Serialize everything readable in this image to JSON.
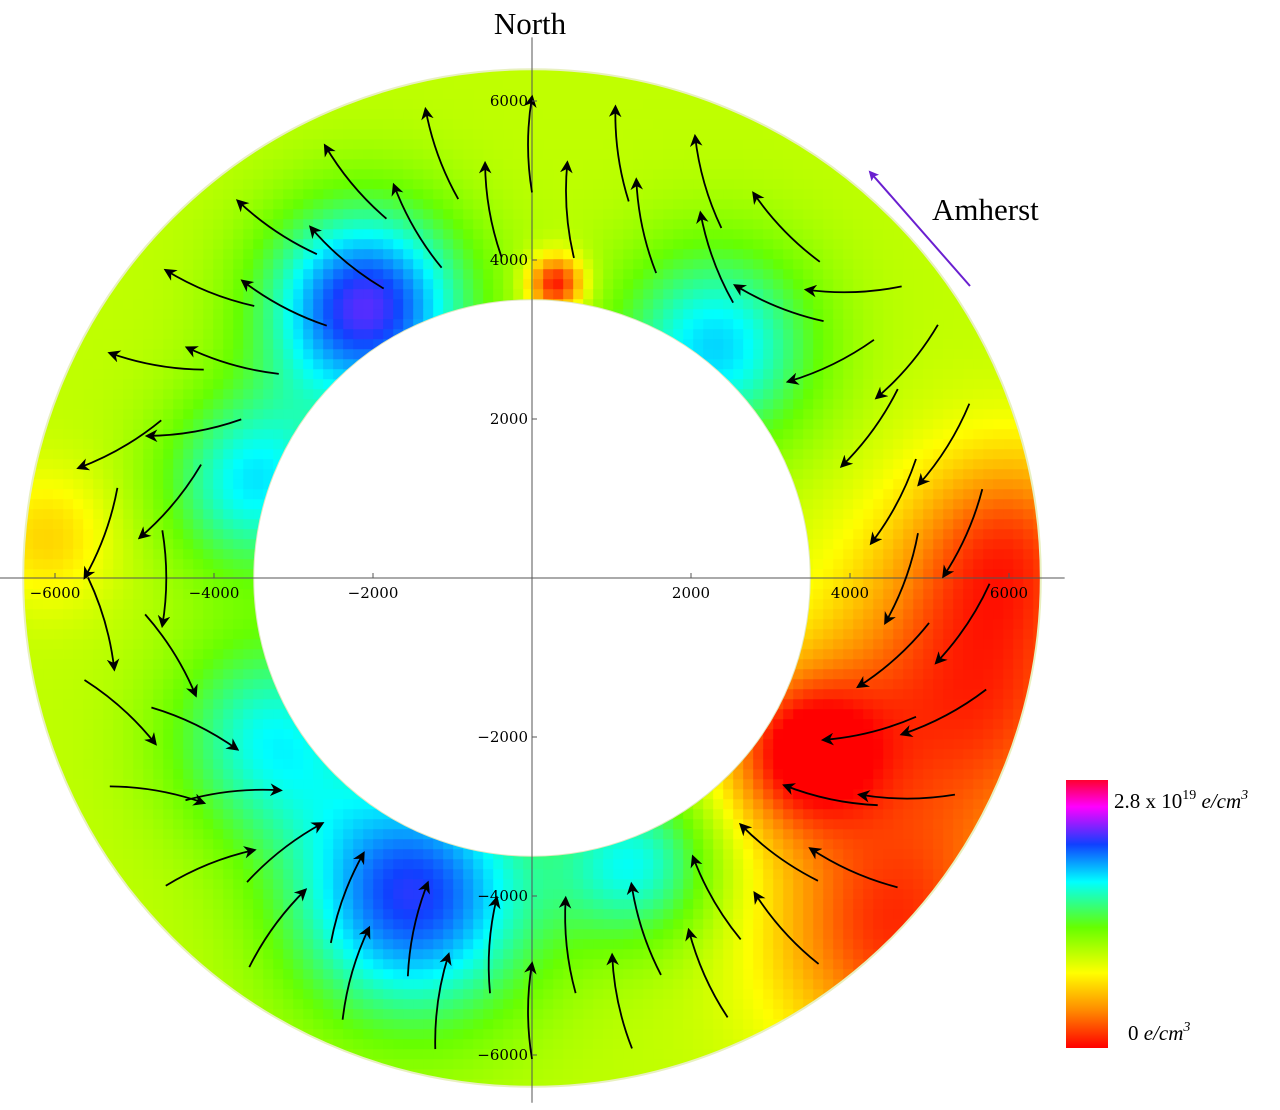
{
  "chart_data": {
    "type": "heatmap",
    "title": "",
    "xlabel": "",
    "ylabel": "",
    "xlim": [
      -6700,
      6700
    ],
    "ylim": [
      -6700,
      6700
    ],
    "annulus": {
      "inner_radius": 3500,
      "outer_radius": 6400
    },
    "x_ticks": [
      {
        "value": -6000,
        "label": "−6000"
      },
      {
        "value": -4000,
        "label": "−4000"
      },
      {
        "value": -2000,
        "label": "−2000"
      },
      {
        "value": 2000,
        "label": "2000"
      },
      {
        "value": 4000,
        "label": "4000"
      },
      {
        "value": 6000,
        "label": "6000"
      }
    ],
    "y_ticks": [
      {
        "value": 6000,
        "label": "6000"
      },
      {
        "value": 4000,
        "label": "4000"
      },
      {
        "value": 2000,
        "label": "2000"
      },
      {
        "value": -2000,
        "label": "−2000"
      },
      {
        "value": -4000,
        "label": "−4000"
      },
      {
        "value": -6000,
        "label": "−6000"
      }
    ],
    "direction_label": "North",
    "annotation": {
      "text": "Amherst",
      "arrow_color": "#6a1fd0"
    },
    "colorbar": {
      "max_label": {
        "base": "2.8 x 10",
        "exp": "19",
        "unit": " e/cm",
        "unit_exp": "3"
      },
      "min_label": {
        "base": "0",
        "unit": " e/cm",
        "unit_exp": "3"
      },
      "colors": [
        "#ff0000",
        "#ff8a00",
        "#ffff00",
        "#66ff00",
        "#00ffff",
        "#1040ff",
        "#ff00ff",
        "#ff0030"
      ]
    },
    "density_field": {
      "scale_max": 2.8e+19,
      "base_level": 0.35,
      "features": [
        {
          "x": -2100,
          "y": 3400,
          "spread": 900,
          "amplitude": 0.45
        },
        {
          "x": -3500,
          "y": 1200,
          "spread": 800,
          "amplitude": 0.28
        },
        {
          "x": 2300,
          "y": 2900,
          "spread": 900,
          "amplitude": 0.3
        },
        {
          "x": -1500,
          "y": -4000,
          "spread": 1100,
          "amplitude": 0.42
        },
        {
          "x": -3300,
          "y": -2000,
          "spread": 900,
          "amplitude": 0.25
        },
        {
          "x": 1300,
          "y": -3600,
          "spread": 700,
          "amplitude": 0.25
        },
        {
          "x": 300,
          "y": 3700,
          "spread": 250,
          "amplitude": -0.35
        },
        {
          "x": 3400,
          "y": -2200,
          "spread": 700,
          "amplitude": -0.32
        },
        {
          "x": 5500,
          "y": -1500,
          "spread": 1400,
          "amplitude": -0.3
        },
        {
          "x": 4500,
          "y": -4500,
          "spread": 1100,
          "amplitude": -0.28
        },
        {
          "x": 6000,
          "y": 500,
          "spread": 900,
          "amplitude": -0.2
        },
        {
          "x": -6100,
          "y": 500,
          "spread": 600,
          "amplitude": -0.12
        }
      ]
    },
    "flow_field": {
      "description_free": true,
      "base_angles_deg": [
        {
          "theta": 0,
          "dir": 250
        },
        {
          "theta": 30,
          "dir": 230
        },
        {
          "theta": 60,
          "dir": 110
        },
        {
          "theta": 90,
          "dir": 90
        },
        {
          "theta": 120,
          "dir": 140
        },
        {
          "theta": 150,
          "dir": 170
        },
        {
          "theta": 180,
          "dir": 270
        },
        {
          "theta": 210,
          "dir": 350
        },
        {
          "theta": 240,
          "dir": 70
        },
        {
          "theta": 270,
          "dir": 90
        },
        {
          "theta": 300,
          "dir": 120
        },
        {
          "theta": 330,
          "dir": 180
        }
      ]
    }
  }
}
